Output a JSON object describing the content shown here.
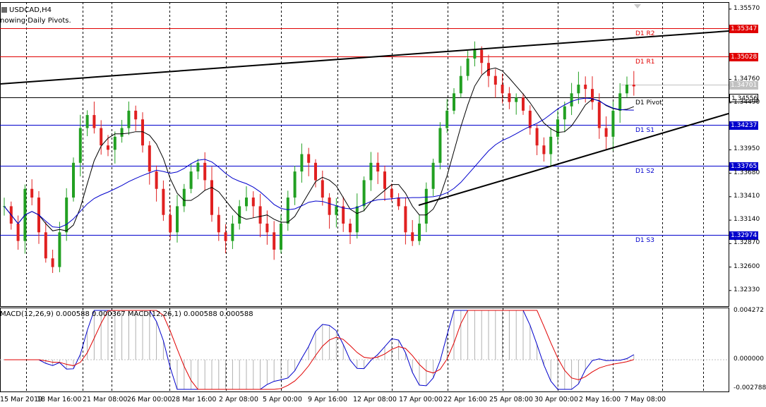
{
  "window": {
    "symbol_title": "USDCAD,H4",
    "indicator_note": "nowing Daily Pivots."
  },
  "macd": {
    "legend": "MACD(12,26,9) 0.000588 0.000367 MACD(12,26,1) 0.000588 0.000588",
    "axis_labels": [
      "0.004272",
      "0.000000",
      "-0.002788"
    ]
  },
  "price_axis": {
    "labels": [
      "1.35570",
      "1.34760",
      "1.34490",
      "1.33950",
      "1.33680",
      "1.33410",
      "1.33140",
      "1.32870",
      "1.32600",
      "1.32330"
    ]
  },
  "pivots": [
    {
      "name": "D1 R2",
      "value": "1.35347",
      "color": "#e00000",
      "tag_bg": "#e00000"
    },
    {
      "name": "D1 R1",
      "value": "1.35028",
      "color": "#e00000",
      "tag_bg": "#e00000"
    },
    {
      "name": "D1 Pivot",
      "value": "1.34556",
      "color": "#000000",
      "tag_bg": "#ffffff"
    },
    {
      "name": "D1 S1",
      "value": "1.34237",
      "color": "#0000cc",
      "tag_bg": "#0000cc"
    },
    {
      "name": "D1 S2",
      "value": "1.33765",
      "color": "#0000cc",
      "tag_bg": "#0000cc"
    },
    {
      "name": "D1 S3",
      "value": "1.32974",
      "color": "#0000cc",
      "tag_bg": "#0000cc"
    }
  ],
  "current_price": {
    "value": "1.34701",
    "tag_bg": "#c0c0c0"
  },
  "time_axis": {
    "labels": [
      "15 Mar 2019",
      "18 Mar 16:00",
      "21 Mar 08:00",
      "26 Mar 00:00",
      "28 Mar 16:00",
      "2 Apr 08:00",
      "5 Apr 00:00",
      "9 Apr 16:00",
      "12 Apr 08:00",
      "17 Apr 00:00",
      "22 Apr 16:00",
      "25 Apr 08:00",
      "30 Apr 00:00",
      "2 May 16:00",
      "7 May 08:00"
    ]
  },
  "colors": {
    "bull": "#22a022",
    "bear": "#e02020",
    "ma_fast": "#000000",
    "ma_slow": "#0000cc",
    "macd_signal": "#e00000",
    "macd_line": "#0000cc",
    "histogram": "#b0b0b0"
  },
  "chart_data": {
    "type": "candlestick",
    "symbol": "USDCAD",
    "timeframe": "H4",
    "ylim": [
      1.3215,
      1.3565
    ],
    "pivots": {
      "R2": 1.35347,
      "R1": 1.35028,
      "P": 1.34556,
      "S1": 1.34237,
      "S2": 1.33765,
      "S3": 1.32974
    },
    "close_path": [
      1.333,
      1.331,
      1.329,
      1.335,
      1.334,
      1.33,
      1.327,
      1.326,
      1.33,
      1.334,
      1.338,
      1.342,
      1.3435,
      1.342,
      1.34,
      1.3395,
      1.341,
      1.342,
      1.344,
      1.343,
      1.34,
      1.337,
      1.335,
      1.332,
      1.33,
      1.333,
      1.335,
      1.337,
      1.338,
      1.336,
      1.332,
      1.33,
      1.329,
      1.331,
      1.333,
      1.334,
      1.333,
      1.331,
      1.33,
      1.328,
      1.331,
      1.334,
      1.337,
      1.339,
      1.338,
      1.336,
      1.334,
      1.332,
      1.333,
      1.331,
      1.33,
      1.333,
      1.336,
      1.338,
      1.337,
      1.335,
      1.334,
      1.333,
      1.33,
      1.329,
      1.331,
      1.335,
      1.338,
      1.342,
      1.344,
      1.346,
      1.348,
      1.35,
      1.351,
      1.3495,
      1.348,
      1.347,
      1.346,
      1.345,
      1.3455,
      1.344,
      1.342,
      1.34,
      1.339,
      1.341,
      1.343,
      1.3445,
      1.346,
      1.347,
      1.3465,
      1.345,
      1.342,
      1.341,
      1.344,
      1.346,
      1.347,
      1.3468
    ]
  }
}
